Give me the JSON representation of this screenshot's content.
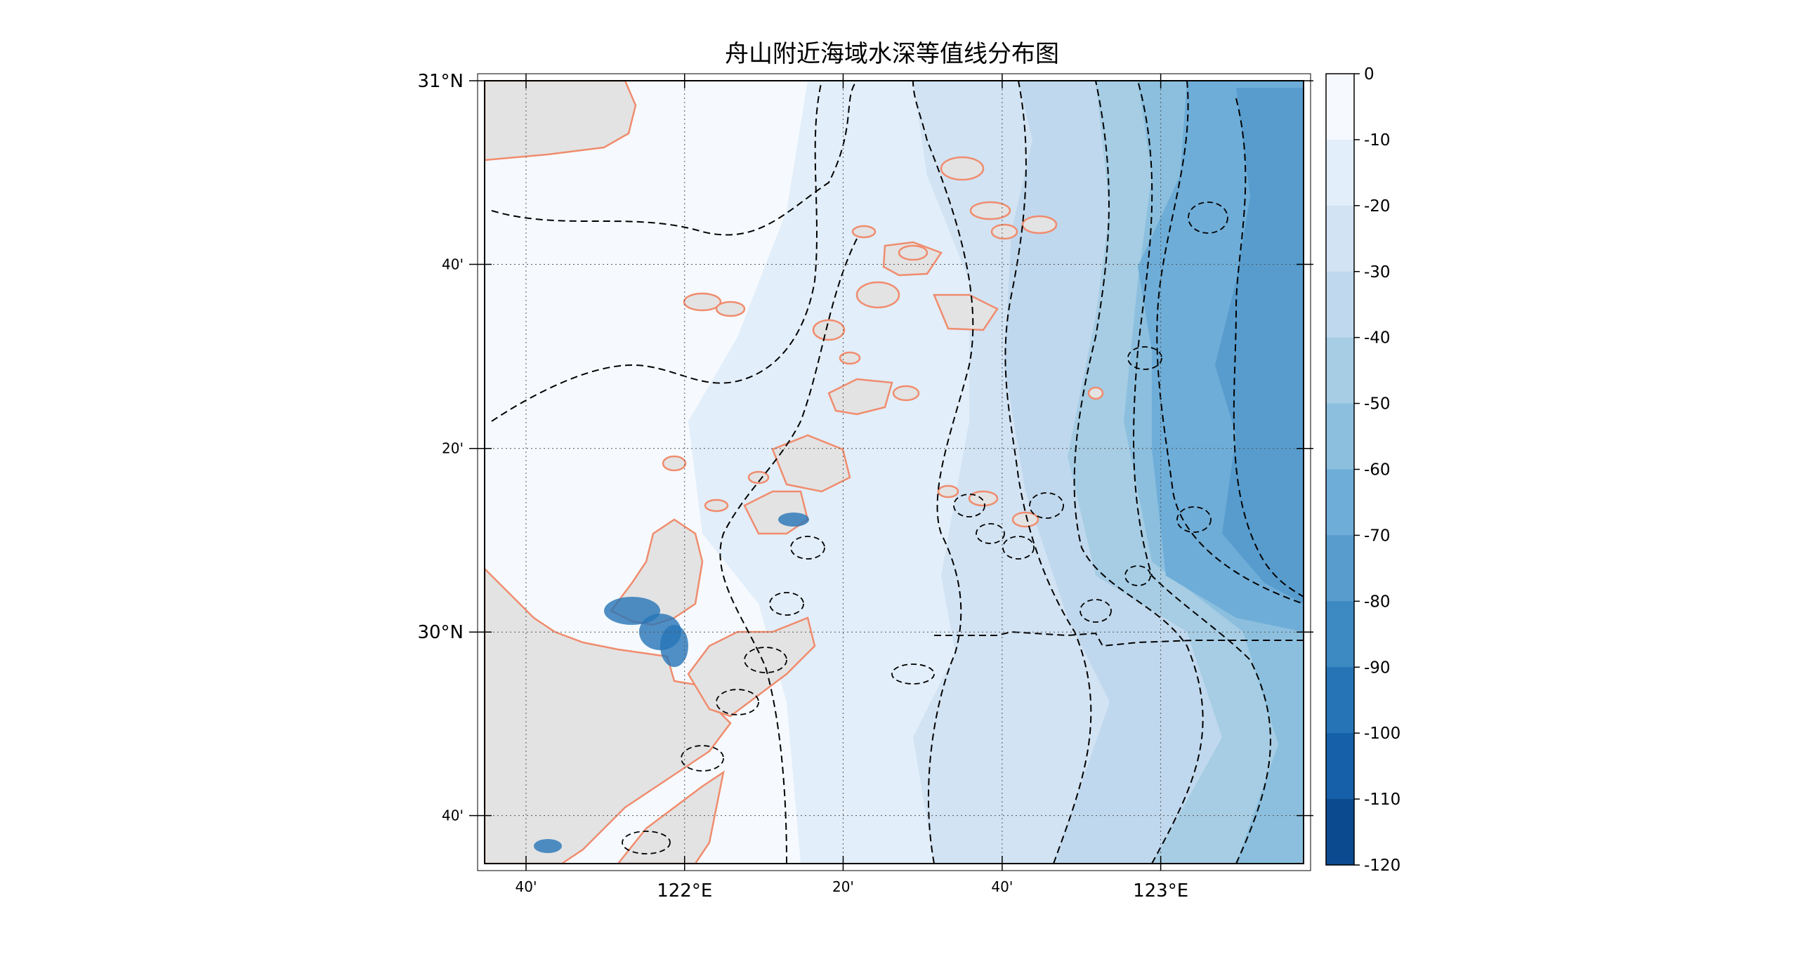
{
  "title": "舟山附近海域水深等值线分布图",
  "map": {
    "lat_ticks": [
      {
        "value": 30.667,
        "label": "40'"
      },
      {
        "value": 30.333,
        "label": "20'"
      },
      {
        "value": 31.0,
        "label": "31°N"
      },
      {
        "value": 30.0,
        "label": "30°N"
      }
    ],
    "lon_ticks": [
      {
        "value": 121.667,
        "label": "40'"
      },
      {
        "value": 122.0,
        "label": "122°E"
      },
      {
        "value": 122.333,
        "label": "20'"
      },
      {
        "value": 122.667,
        "label": "40'"
      },
      {
        "value": 123.0,
        "label": "123°E"
      }
    ],
    "lat_minor_labels": [
      {
        "value": 29.667,
        "label": "40'"
      }
    ],
    "lon_range": [
      121.58,
      123.3
    ],
    "lat_range": [
      29.58,
      31.0
    ],
    "grid": true,
    "land_color": "#e3e3e3",
    "coastline_color": "#f08c6e",
    "contour_color": "#000000"
  },
  "colorbar": {
    "ticks": [
      "0",
      "-10",
      "-20",
      "-30",
      "-40",
      "-50",
      "-60",
      "-70",
      "-80",
      "-90",
      "-100",
      "-110",
      "-120"
    ],
    "colors": [
      "#f6fafe",
      "#e2eef9",
      "#d2e3f3",
      "#c0d8ed",
      "#a6cde4",
      "#8cbfde",
      "#6eadd8",
      "#579ccd",
      "#3d89c2",
      "#2674b6",
      "#1560a8",
      "#0b4a8e",
      "#083572"
    ]
  }
}
